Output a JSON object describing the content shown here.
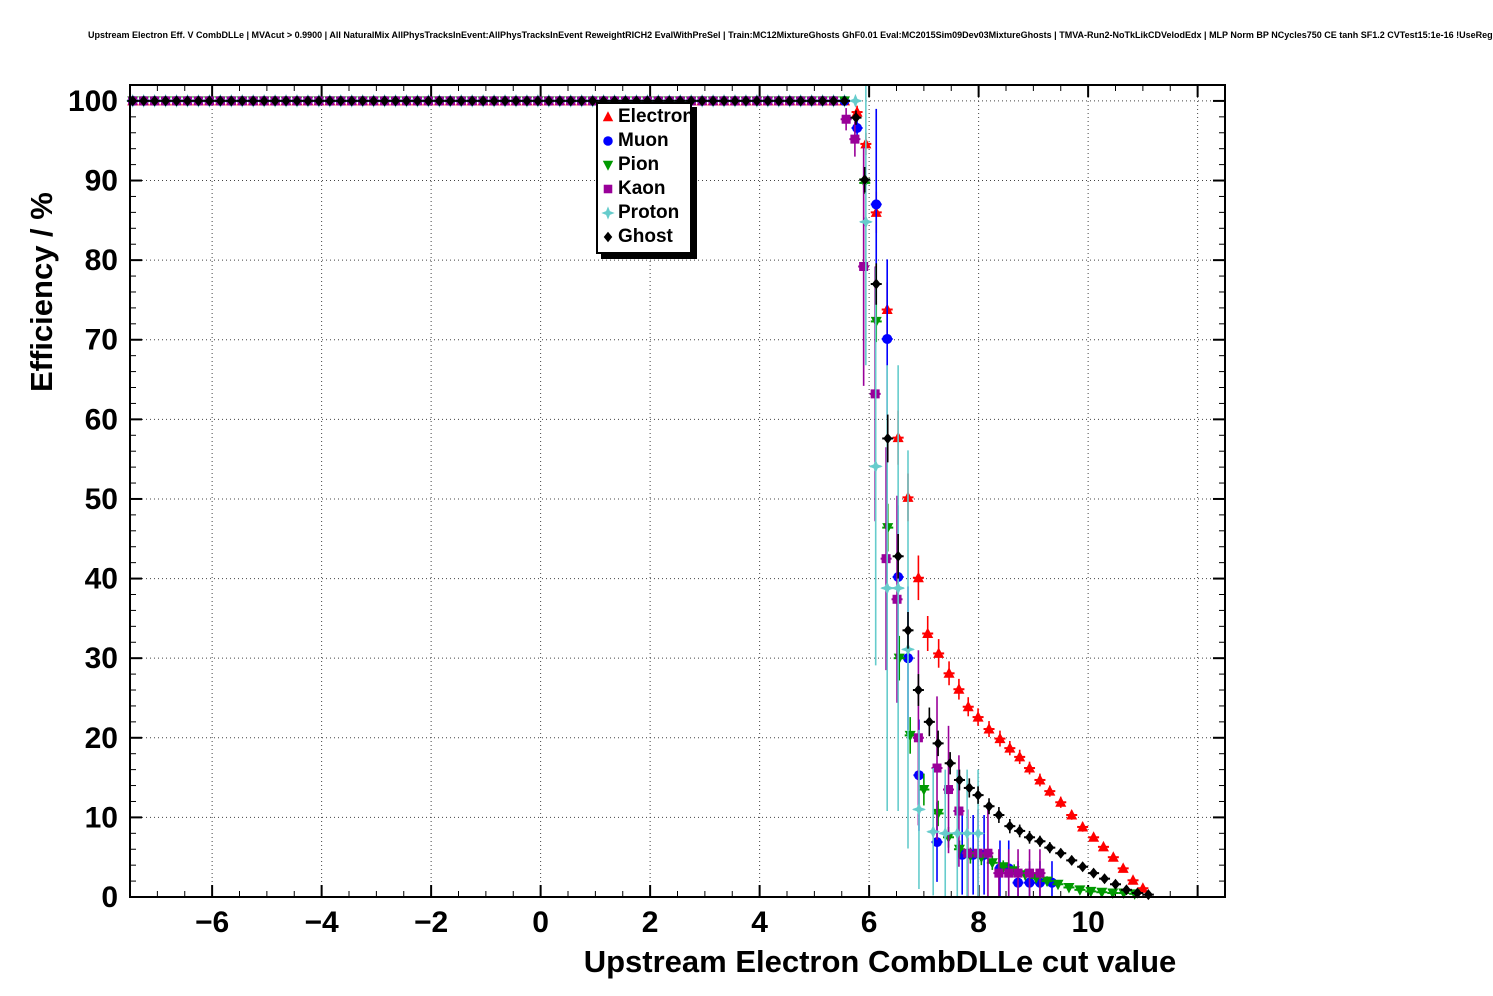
{
  "header": {
    "title": "Upstream Electron Eff. V CombDLLe | MVAcut > 0.9900 | All NaturalMix AllPhysTracksInEvent:AllPhysTracksInEvent ReweightRICH2 EvalWithPreSel | Train:MC12MixtureGhosts GhF0.01 Eval:MC2015Sim09Dev03MixtureGhosts | TMVA-Run2-NoTkLikCDVelodEdx | MLP Norm BP NCycles750 CE tanh SF1.2 CVTest15:1e-16 !UseReg"
  },
  "chart_data": {
    "type": "scatter",
    "title": "",
    "xlabel": "Upstream Electron CombDLLe cut value",
    "ylabel": "Efficiency / %",
    "xlim": [
      -7.5,
      12.5
    ],
    "ylim": [
      0,
      102
    ],
    "grid": true,
    "legend_position": "top-center",
    "x_ticks": [
      {
        "v": -6,
        "label": "−6"
      },
      {
        "v": -4,
        "label": "−4"
      },
      {
        "v": -2,
        "label": "−2"
      },
      {
        "v": 0,
        "label": "0"
      },
      {
        "v": 2,
        "label": "2"
      },
      {
        "v": 4,
        "label": "4"
      },
      {
        "v": 6,
        "label": "6"
      },
      {
        "v": 8,
        "label": "8"
      },
      {
        "v": 10,
        "label": "10"
      },
      {
        "v": 12,
        "label": ""
      }
    ],
    "x_minor_step": 0.5,
    "y_ticks": [
      {
        "v": 0,
        "label": "0"
      },
      {
        "v": 10,
        "label": "10"
      },
      {
        "v": 20,
        "label": "20"
      },
      {
        "v": 30,
        "label": "30"
      },
      {
        "v": 40,
        "label": "40"
      },
      {
        "v": 50,
        "label": "50"
      },
      {
        "v": 60,
        "label": "60"
      },
      {
        "v": 70,
        "label": "70"
      },
      {
        "v": 80,
        "label": "80"
      },
      {
        "v": 90,
        "label": "90"
      },
      {
        "v": 100,
        "label": "100"
      }
    ],
    "y_minor_step": 2,
    "series": [
      {
        "name": "Electron",
        "color": "#ff0000",
        "marker": "triangle-up",
        "baseline": {
          "from": -7.45,
          "to": 5.65,
          "step": 0.2,
          "y": 100
        },
        "points": [
          [
            5.78,
            98.6,
            0.8
          ],
          [
            5.94,
            94.6,
            1.4
          ],
          [
            6.13,
            86.0,
            2.6
          ],
          [
            6.33,
            73.8,
            3.4
          ],
          [
            6.53,
            57.7,
            3.4
          ],
          [
            6.71,
            50.2,
            3.0
          ],
          [
            6.9,
            40.1,
            2.8
          ],
          [
            7.07,
            33.1,
            2.2
          ],
          [
            7.27,
            30.6,
            1.8
          ],
          [
            7.46,
            28.1,
            1.5
          ],
          [
            7.64,
            26.1,
            1.3
          ],
          [
            7.81,
            23.9,
            1.2
          ],
          [
            7.99,
            22.6,
            1.1
          ],
          [
            8.19,
            21.1,
            1.0
          ],
          [
            8.39,
            19.9,
            1.0
          ],
          [
            8.57,
            18.7,
            0.9
          ],
          [
            8.75,
            17.6,
            0.9
          ],
          [
            8.93,
            16.2,
            0.8
          ],
          [
            9.12,
            14.7,
            0.8
          ],
          [
            9.3,
            13.3,
            0.7
          ],
          [
            9.5,
            11.9,
            0.7
          ],
          [
            9.7,
            10.3,
            0.6
          ],
          [
            9.9,
            8.8,
            0.6
          ],
          [
            10.1,
            7.5,
            0.5
          ],
          [
            10.28,
            6.3,
            0.5
          ],
          [
            10.46,
            5.0,
            0.4
          ],
          [
            10.64,
            3.6,
            0.4
          ],
          [
            10.82,
            2.1,
            0.3
          ],
          [
            11.0,
            1.1,
            0.3
          ]
        ]
      },
      {
        "name": "Muon",
        "color": "#0000ff",
        "marker": "circle",
        "baseline": {
          "from": -7.45,
          "to": 5.65,
          "step": 0.2,
          "y": 100
        },
        "points": [
          [
            5.78,
            96.6,
            1.6
          ],
          [
            6.13,
            87.0,
            12
          ],
          [
            6.33,
            70.1,
            10
          ],
          [
            6.53,
            40.2,
            9
          ],
          [
            6.71,
            30.0,
            9
          ],
          [
            6.91,
            15.3,
            7
          ],
          [
            7.24,
            6.9,
            5
          ],
          [
            7.7,
            5.3,
            5
          ],
          [
            7.9,
            5.3,
            5
          ],
          [
            8.1,
            5.3,
            5
          ],
          [
            8.39,
            3.6,
            3.5
          ],
          [
            8.55,
            3.6,
            3.5
          ],
          [
            8.72,
            1.8,
            2.7
          ],
          [
            8.93,
            1.8,
            2.7
          ],
          [
            9.12,
            1.8,
            2.7
          ],
          [
            9.34,
            1.8,
            2.7
          ]
        ]
      },
      {
        "name": "Pion",
        "color": "#009900",
        "marker": "triangle-down",
        "baseline": {
          "from": -7.45,
          "to": 5.65,
          "step": 0.2,
          "y": 100
        },
        "points": [
          [
            5.92,
            89.7,
            1.4
          ],
          [
            6.13,
            72.3,
            2.6
          ],
          [
            6.34,
            46.4,
            3.0
          ],
          [
            6.55,
            30.0,
            2.8
          ],
          [
            6.75,
            20.3,
            2.3
          ],
          [
            7.0,
            13.5,
            2.0
          ],
          [
            7.26,
            10.5,
            1.6
          ],
          [
            7.45,
            7.5,
            1.3
          ],
          [
            7.65,
            6.0,
            1.1
          ],
          [
            7.85,
            5.2,
            1.0
          ],
          [
            8.05,
            5.0,
            1.0
          ],
          [
            8.25,
            4.3,
            0.9
          ],
          [
            8.45,
            3.8,
            0.8
          ],
          [
            8.65,
            3.3,
            0.8
          ],
          [
            8.85,
            2.8,
            0.7
          ],
          [
            9.05,
            2.4,
            0.6
          ],
          [
            9.25,
            2.0,
            0.6
          ],
          [
            9.45,
            1.6,
            0.5
          ],
          [
            9.65,
            1.2,
            0.4
          ],
          [
            9.85,
            0.9,
            0.4
          ],
          [
            10.05,
            0.7,
            0.3
          ],
          [
            10.25,
            0.6,
            0.3
          ],
          [
            10.45,
            0.5,
            0.3
          ],
          [
            10.65,
            0.5,
            0.3
          ],
          [
            10.85,
            0.4,
            0.2
          ]
        ]
      },
      {
        "name": "Kaon",
        "color": "#990099",
        "marker": "square",
        "baseline": {
          "from": -7.45,
          "to": 5.45,
          "step": 0.2,
          "y": 100
        },
        "points": [
          [
            5.58,
            97.7,
            1.4
          ],
          [
            5.74,
            95.2,
            2.2
          ],
          [
            5.9,
            79.2,
            15
          ],
          [
            6.11,
            63.2,
            16
          ],
          [
            6.31,
            42.5,
            14
          ],
          [
            6.51,
            37.4,
            13
          ],
          [
            6.9,
            20.0,
            11
          ],
          [
            7.24,
            16.2,
            9
          ],
          [
            7.45,
            13.5,
            8
          ],
          [
            7.64,
            10.8,
            7
          ],
          [
            7.8,
            5.5,
            5.5
          ],
          [
            7.99,
            5.5,
            5.5
          ],
          [
            8.17,
            5.5,
            5.5
          ],
          [
            8.37,
            3.0,
            3.0
          ],
          [
            8.55,
            3.0,
            3.0
          ],
          [
            8.72,
            3.0,
            3.0
          ],
          [
            8.93,
            3.0,
            3.0
          ],
          [
            9.12,
            3.0,
            3.0
          ]
        ]
      },
      {
        "name": "Proton",
        "color": "#66cccc",
        "marker": "star4",
        "baseline": {
          "from": -7.45,
          "to": 5.85,
          "step": 0.2,
          "y": 100
        },
        "points": [
          [
            5.94,
            84.8,
            18
          ],
          [
            6.12,
            54.1,
            25
          ],
          [
            6.33,
            38.8,
            28
          ],
          [
            6.53,
            38.8,
            28
          ],
          [
            6.71,
            31.1,
            25
          ],
          [
            6.91,
            11.0,
            10
          ],
          [
            7.17,
            8.2,
            8
          ],
          [
            7.39,
            8.0,
            8
          ],
          [
            7.61,
            8.0,
            8
          ],
          [
            7.79,
            8.0,
            8
          ],
          [
            7.99,
            8.0,
            8
          ]
        ]
      },
      {
        "name": "Ghost",
        "color": "#000000",
        "marker": "diamond",
        "baseline": {
          "from": -7.45,
          "to": 5.65,
          "step": 0.2,
          "y": 100
        },
        "points": [
          [
            5.76,
            97.9,
            0.9
          ],
          [
            5.92,
            90.1,
            1.6
          ],
          [
            6.13,
            77.0,
            2.6
          ],
          [
            6.34,
            57.6,
            3.0
          ],
          [
            6.53,
            42.8,
            2.8
          ],
          [
            6.71,
            33.5,
            2.3
          ],
          [
            6.9,
            26.0,
            2.0
          ],
          [
            7.1,
            22.0,
            1.8
          ],
          [
            7.26,
            19.3,
            1.6
          ],
          [
            7.48,
            16.8,
            1.4
          ],
          [
            7.65,
            14.7,
            1.3
          ],
          [
            7.83,
            13.7,
            1.2
          ],
          [
            7.99,
            12.8,
            1.1
          ],
          [
            8.19,
            11.4,
            1.0
          ],
          [
            8.37,
            10.3,
            1.0
          ],
          [
            8.57,
            8.9,
            0.9
          ],
          [
            8.75,
            8.3,
            0.8
          ],
          [
            8.93,
            7.5,
            0.8
          ],
          [
            9.12,
            7.0,
            0.7
          ],
          [
            9.3,
            6.2,
            0.7
          ],
          [
            9.5,
            5.5,
            0.6
          ],
          [
            9.7,
            4.6,
            0.6
          ],
          [
            9.9,
            3.8,
            0.5
          ],
          [
            10.1,
            3.0,
            0.4
          ],
          [
            10.3,
            2.3,
            0.4
          ],
          [
            10.5,
            1.6,
            0.3
          ],
          [
            10.7,
            0.9,
            0.3
          ],
          [
            10.9,
            0.5,
            0.2
          ],
          [
            11.1,
            0.3,
            0.2
          ]
        ]
      }
    ]
  }
}
